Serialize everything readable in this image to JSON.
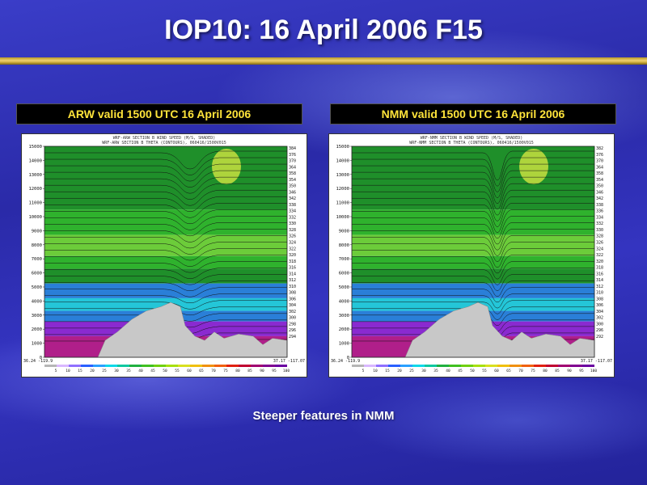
{
  "slide": {
    "title": "IOP10: 16 April 2006 F15",
    "caption": "Steeper features in NMM"
  },
  "panels": [
    {
      "header": "ARW valid 1500 UTC 16 April 2006",
      "plot_title_lines": [
        "WRF-ARW SECTION B WIND SPEED (M/S, SHADED)",
        "WRF-ARW SECTION B THETA (CONTOURS), 060416/1500V015"
      ],
      "theta_labels": [
        "384",
        "376",
        "370",
        "364",
        "358",
        "354",
        "350",
        "346",
        "342",
        "338",
        "334",
        "332",
        "330",
        "328",
        "326",
        "324",
        "322",
        "320",
        "318",
        "316",
        "314",
        "312",
        "310",
        "308",
        "306",
        "304",
        "302",
        "300",
        "298",
        "296",
        "294"
      ],
      "corner_left": "36.24 -119.9",
      "corner_right": "37.17 -117.07"
    },
    {
      "header": "NMM valid 1500 UTC 16 April 2006",
      "plot_title_lines": [
        "WRF-NMM SECTION B WIND SPEED (M/S, SHADED)",
        "WRF-NMM SECTION B THETA (CONTOURS), 060416/1500V015"
      ],
      "theta_labels": [
        "382",
        "376",
        "370",
        "364",
        "358",
        "354",
        "350",
        "346",
        "342",
        "338",
        "336",
        "334",
        "332",
        "330",
        "328",
        "326",
        "324",
        "322",
        "320",
        "318",
        "316",
        "314",
        "312",
        "310",
        "308",
        "306",
        "304",
        "302",
        "300",
        "296",
        "292"
      ],
      "corner_left": "36.24 -119.9",
      "corner_right": "37.17 -117.07"
    }
  ],
  "y_ticks": [
    "15000",
    "14000",
    "13000",
    "12000",
    "11000",
    "10000",
    "9000",
    "8000",
    "7000",
    "6000",
    "5000",
    "4000",
    "3000",
    "2000",
    "1000",
    "0"
  ],
  "colorbar_labels": [
    "5",
    "10",
    "15",
    "20",
    "25",
    "30",
    "35",
    "40",
    "45",
    "50",
    "55",
    "60",
    "65",
    "70",
    "75",
    "80",
    "85",
    "90",
    "95",
    "100"
  ],
  "colorbar_colors": [
    "#b6b6b6",
    "#d9b8ff",
    "#9070ff",
    "#2a60ff",
    "#2aa0ff",
    "#10d8e8",
    "#10c8a0",
    "#20b040",
    "#40c020",
    "#70d010",
    "#a8e010",
    "#d8e020",
    "#f0c010",
    "#f09010",
    "#f06010",
    "#e02010",
    "#c00030",
    "#a00070",
    "#800090",
    "#6a00a0"
  ],
  "colors": {
    "title_text": "#ffffff",
    "header_text": "#ffe43a",
    "terrain": "#c8c8c8",
    "band_dark_green": "#1f8f2a",
    "band_green": "#2fb22d",
    "band_light_green": "#6ccc3a",
    "band_blue": "#2a7fd8",
    "band_cyan": "#24c6d8",
    "band_purple": "#8a2ad0",
    "band_magenta": "#b01f8a"
  }
}
